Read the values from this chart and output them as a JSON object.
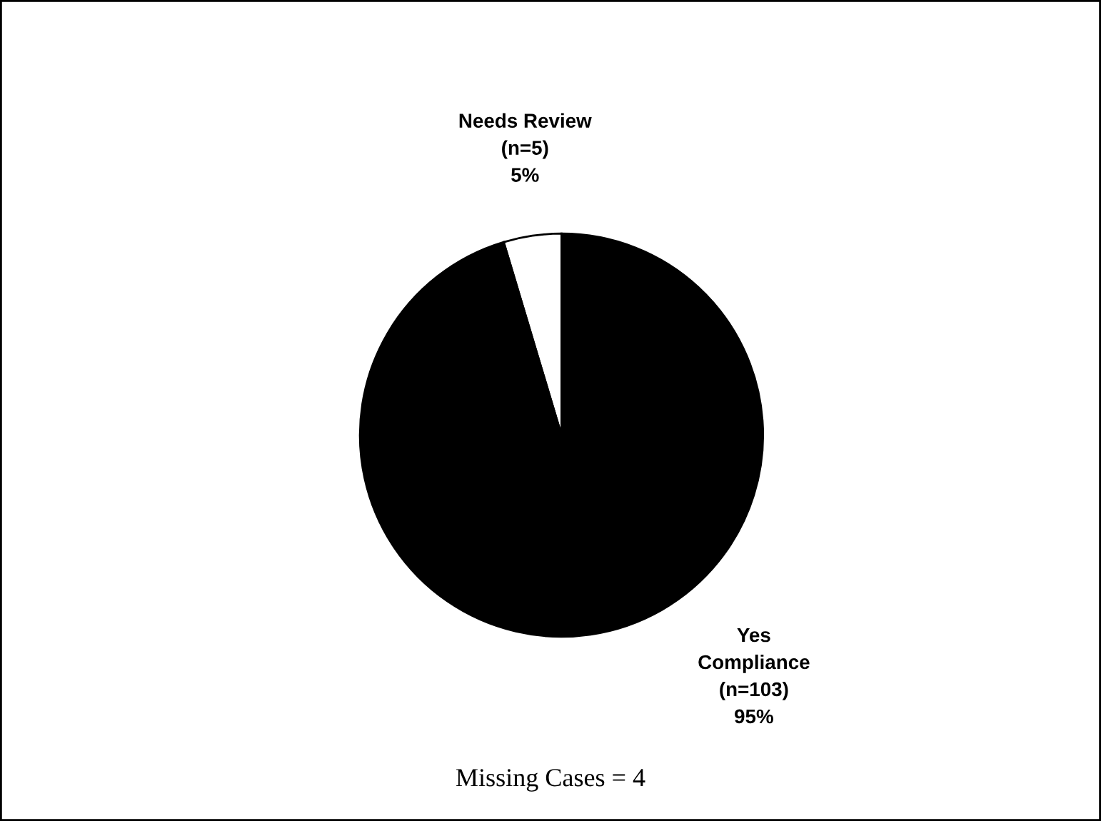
{
  "chart_data": {
    "type": "pie",
    "categories": [
      "Needs Review",
      "Yes\nCompliance"
    ],
    "values": [
      5,
      103
    ],
    "value_labels": [
      "(n=5)\n5%",
      "(n=103)\n95%"
    ],
    "colors": [
      "#ffffff",
      "#000000"
    ],
    "annotations": [
      "Missing Cases = 4"
    ]
  }
}
